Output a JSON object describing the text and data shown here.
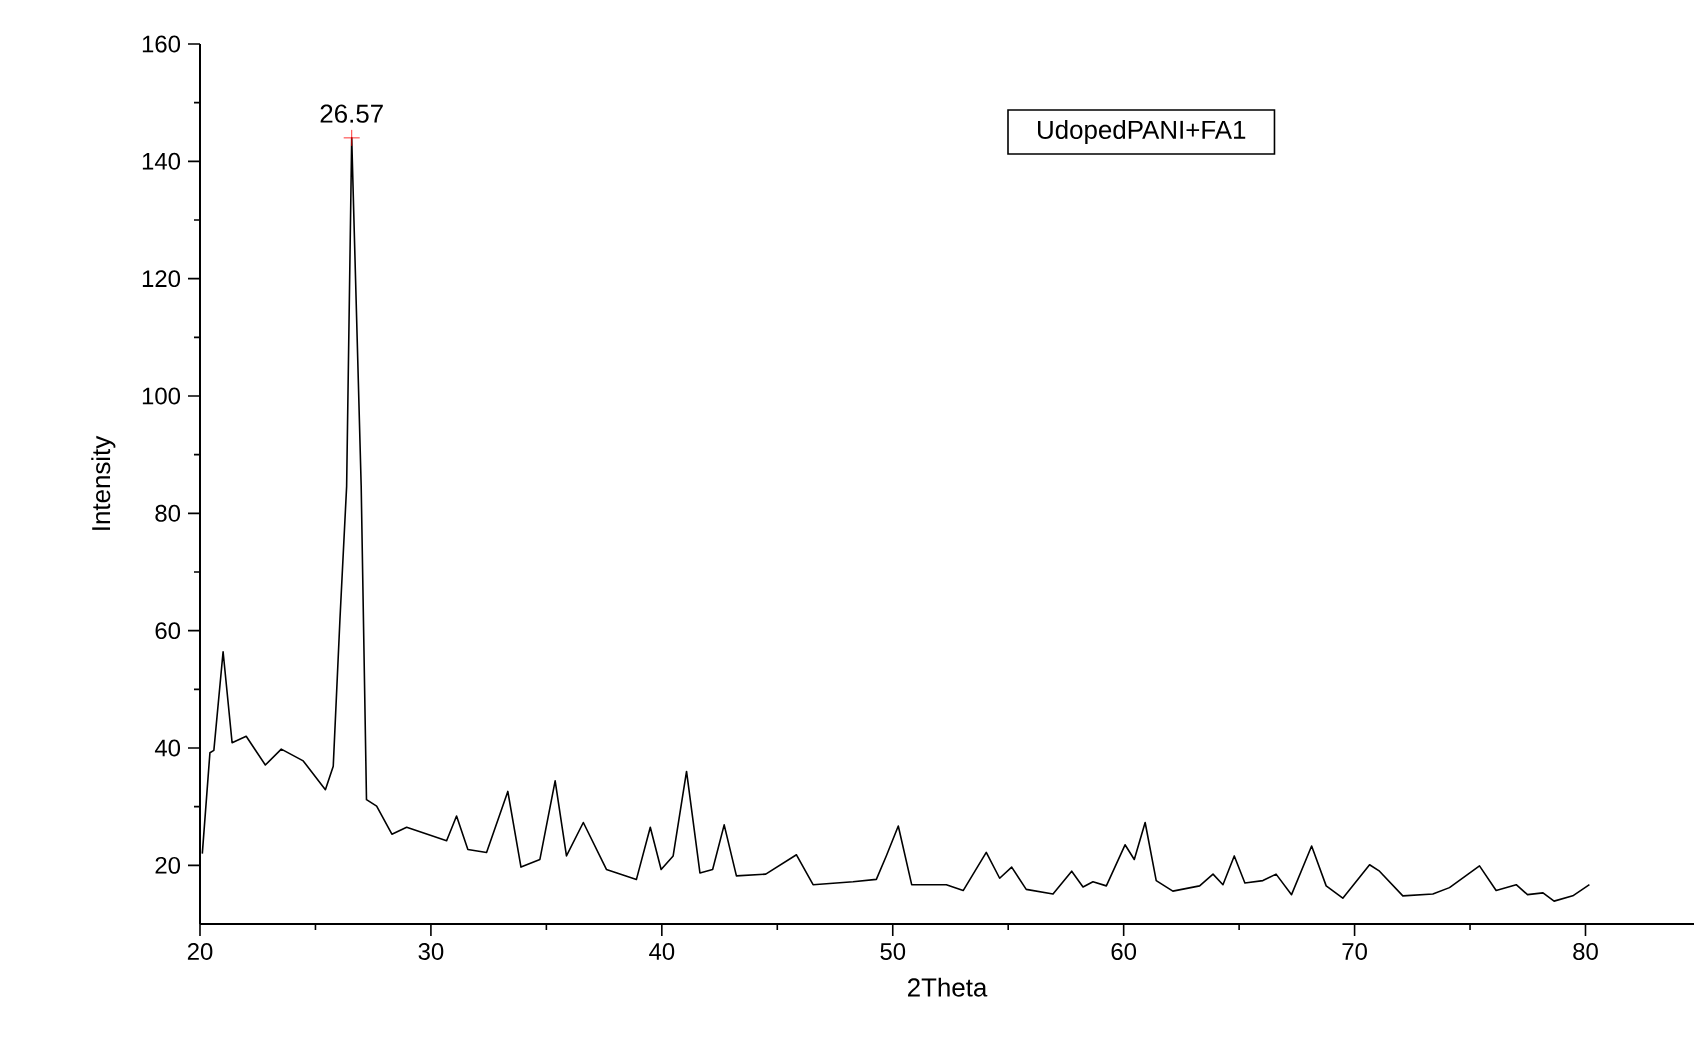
{
  "chart_data": {
    "type": "line",
    "xlabel": "2Theta",
    "ylabel": "Intensity",
    "color": "#000000",
    "x": [
      20.1,
      20.43,
      20.6,
      21.0,
      21.39,
      22.0,
      22.83,
      23.52,
      24.47,
      25.43,
      25.77,
      26.06,
      26.35,
      26.57,
      26.98,
      27.21,
      27.65,
      28.31,
      28.95,
      30.68,
      31.11,
      31.6,
      32.41,
      33.33,
      33.9,
      34.72,
      35.38,
      35.87,
      36.6,
      37.6,
      38.9,
      39.5,
      39.97,
      40.49,
      41.07,
      41.65,
      42.2,
      42.7,
      43.23,
      44.5,
      45.83,
      46.55,
      48.28,
      49.29,
      49.72,
      50.24,
      50.82,
      52.32,
      53.05,
      54.05,
      54.63,
      55.15,
      55.78,
      56.94,
      57.75,
      58.24,
      58.67,
      59.25,
      60.06,
      60.46,
      60.93,
      61.41,
      62.13,
      63.29,
      63.87,
      64.3,
      64.79,
      65.25,
      66.03,
      66.6,
      67.27,
      68.14,
      68.77,
      69.49,
      70.65,
      71.08,
      72.09,
      73.39,
      74.11,
      75.41,
      76.13,
      77,
      77.49,
      78.16,
      78.64,
      79.45,
      80.17
    ],
    "values": [
      22,
      39.2,
      39.6,
      56.4,
      40.9,
      42,
      37.1,
      39.8,
      37.8,
      32.9,
      36.9,
      61.9,
      84.6,
      144,
      84.7,
      31.2,
      30.1,
      25.3,
      26.5,
      24.2,
      28.4,
      22.7,
      22.2,
      32.6,
      19.7,
      21,
      34.4,
      21.6,
      27.3,
      19.3,
      17.6,
      26.5,
      19.3,
      21.6,
      36,
      18.7,
      19.3,
      26.9,
      18.2,
      18.5,
      21.8,
      16.7,
      17.2,
      17.6,
      21.6,
      26.7,
      16.7,
      16.7,
      15.7,
      22.2,
      17.8,
      19.7,
      15.9,
      15.1,
      19,
      16.3,
      17.2,
      16.5,
      23.5,
      21,
      27.3,
      17.4,
      15.6,
      16.5,
      18.5,
      16.7,
      21.6,
      17,
      17.4,
      18.5,
      15,
      23.3,
      16.5,
      14.4,
      20.1,
      19,
      14.8,
      15.1,
      16.2,
      19.9,
      15.7,
      16.7,
      15,
      15.3,
      13.9,
      14.8,
      16.7
    ],
    "xlim": [
      20,
      84.7
    ],
    "ylim": [
      10,
      160
    ],
    "xticks": [
      20,
      {
        "value": 25,
        "label": null
      },
      30,
      {
        "value": 35,
        "label": null
      },
      40,
      {
        "value": 45,
        "label": null
      },
      50,
      {
        "value": 55,
        "label": null
      },
      60,
      {
        "value": 65,
        "label": null
      },
      70,
      {
        "value": 75,
        "label": null
      },
      80
    ],
    "yticks": [
      20,
      {
        "value": 30,
        "label": null
      },
      40,
      {
        "value": 50,
        "label": null
      },
      60,
      {
        "value": 70,
        "label": null
      },
      80,
      {
        "value": 90,
        "label": null
      },
      100,
      {
        "value": 110,
        "label": null
      },
      120,
      {
        "value": 130,
        "label": null
      },
      140,
      {
        "value": 150,
        "label": null
      },
      160
    ],
    "annotations": [
      {
        "text": "26.57",
        "x": 26.57,
        "y": 144
      },
      "UdopedPANI+FA1"
    ]
  }
}
